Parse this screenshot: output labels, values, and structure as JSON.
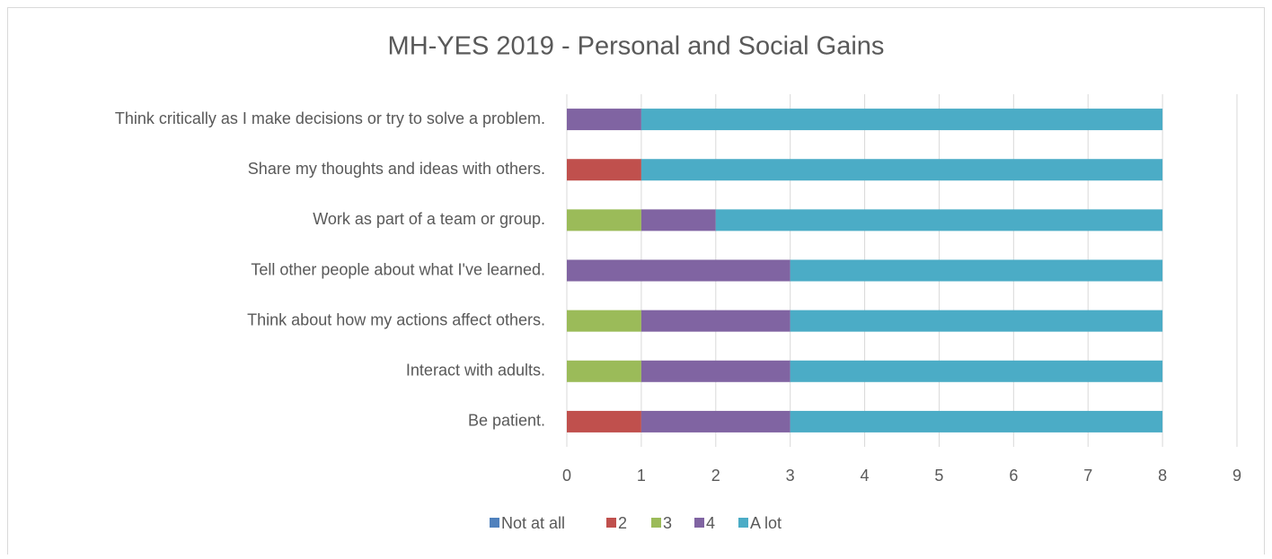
{
  "chart_data": {
    "type": "stacked_bar_horizontal",
    "title": "MH-YES 2019 - Personal and Social Gains",
    "categories": [
      "Think critically as I make decisions or try to solve a problem.",
      "Share my thoughts and ideas with others.",
      "Work as part of a team or group.",
      "Tell other people about what I've learned.",
      "Think about how my actions affect others.",
      "Interact with adults.",
      "Be patient."
    ],
    "series": [
      {
        "name": "Not at all",
        "color": "#4f81bd",
        "values": [
          0,
          0,
          0,
          0,
          0,
          0,
          0
        ]
      },
      {
        "name": "2",
        "color": "#c0504d",
        "values": [
          0,
          1,
          0,
          0,
          0,
          0,
          1
        ]
      },
      {
        "name": "3",
        "color": "#9bbb59",
        "values": [
          0,
          0,
          1,
          0,
          1,
          1,
          0
        ]
      },
      {
        "name": "4",
        "color": "#8064a2",
        "values": [
          1,
          0,
          1,
          3,
          2,
          2,
          2
        ]
      },
      {
        "name": "A lot",
        "color": "#4bacc6",
        "values": [
          7,
          7,
          6,
          5,
          5,
          5,
          5
        ]
      }
    ],
    "xlim": [
      0,
      9
    ],
    "xticks": [
      0,
      1,
      2,
      3,
      4,
      5,
      6,
      7,
      8,
      9
    ],
    "grid": true,
    "legend": "bottom"
  }
}
